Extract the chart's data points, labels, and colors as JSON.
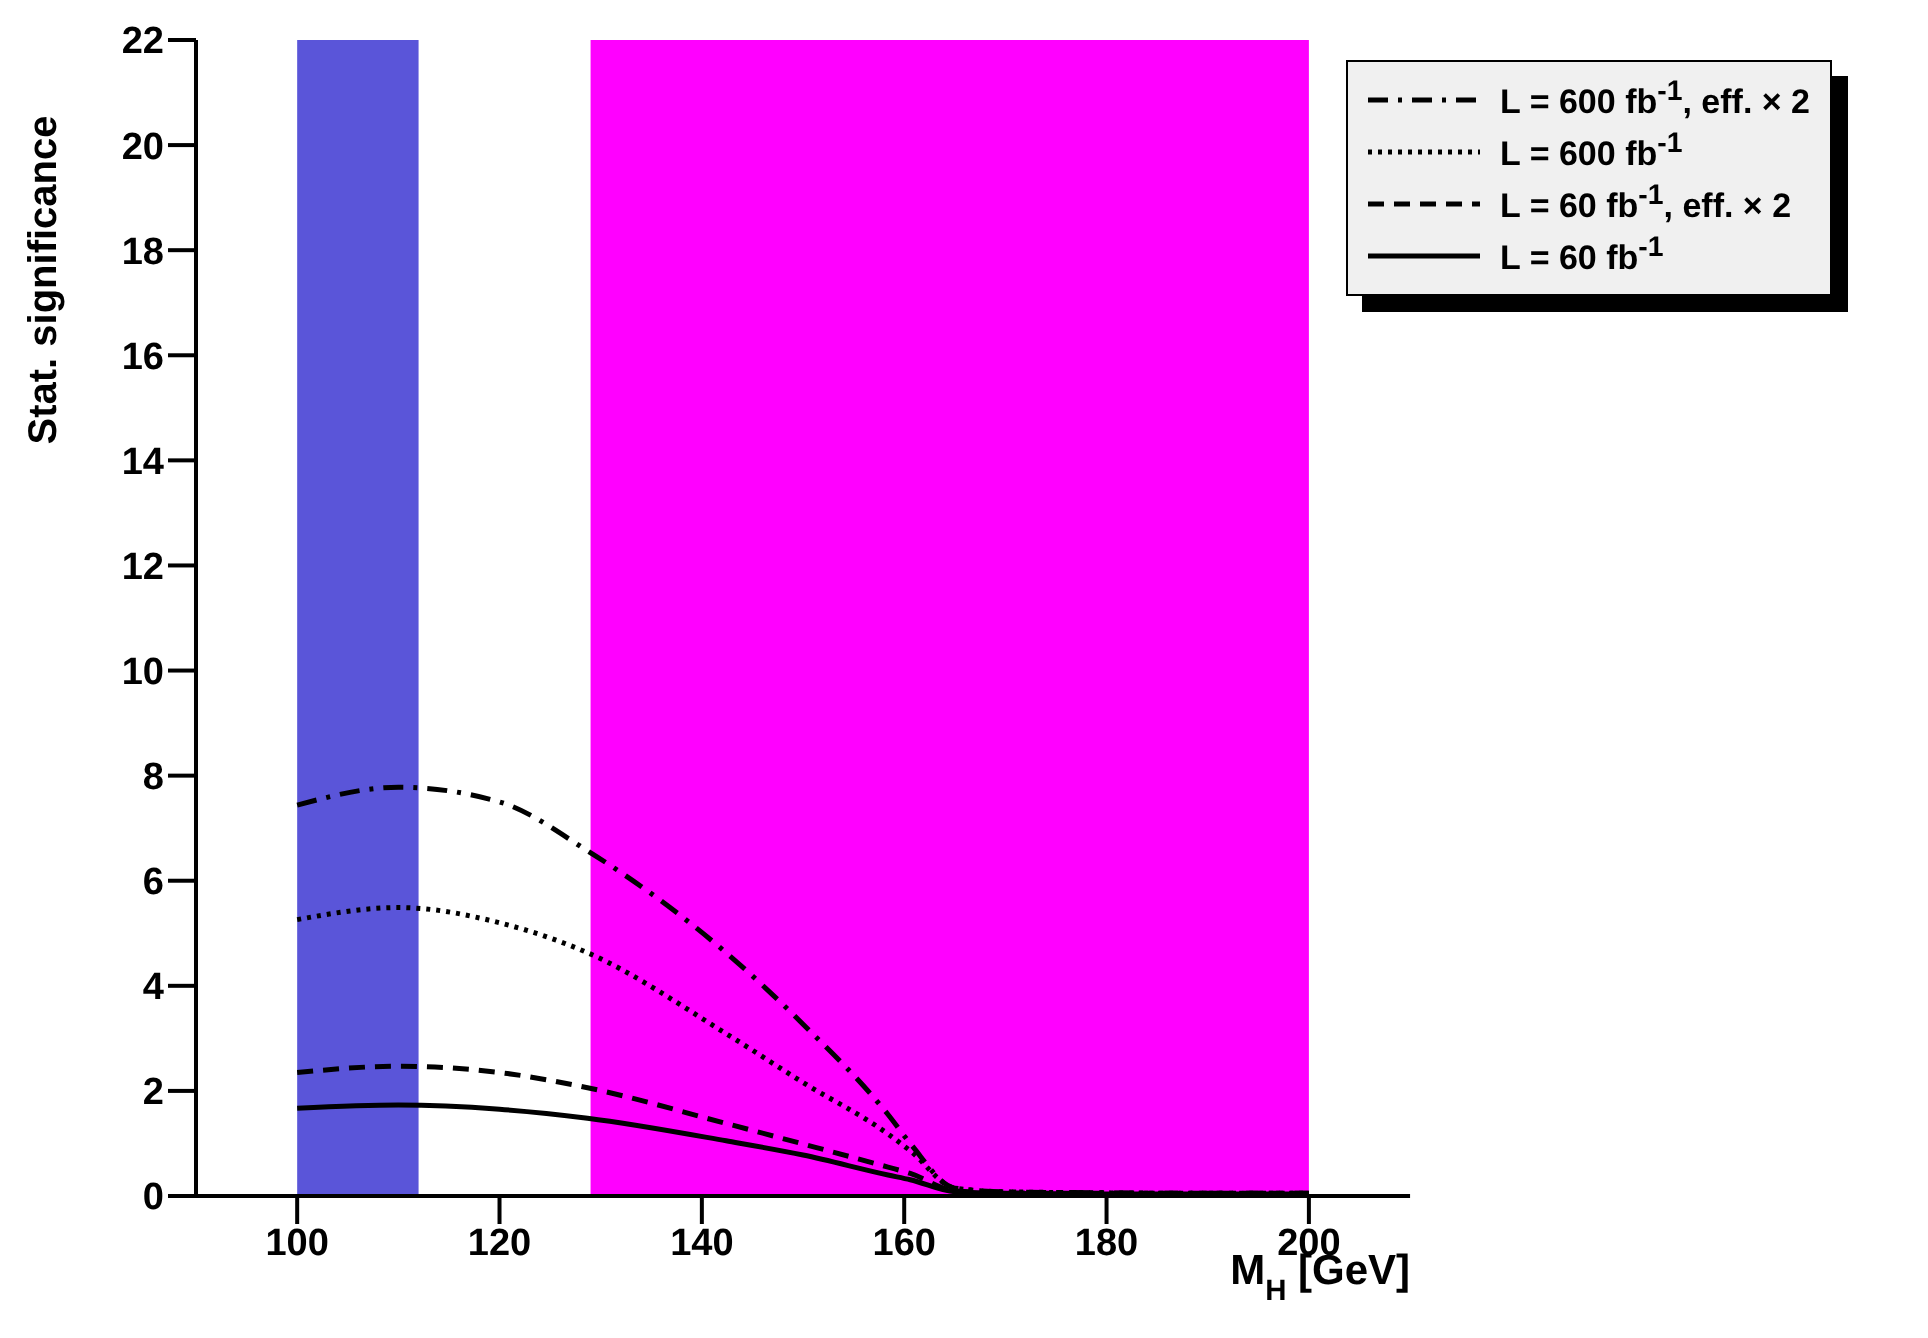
{
  "chart_data": {
    "type": "line",
    "xlabel": "M$_{H}$ [GeV]",
    "ylabel": "Stat. significance",
    "x": [
      100,
      110,
      120,
      128.7,
      142.4,
      150,
      158.4,
      160.6,
      165,
      170,
      180,
      190,
      200
    ],
    "series": [
      {
        "name": "L = 600 fb$^{-1}$, eff. × 2",
        "color": "#000000",
        "line_style": "dashdot",
        "values": [
          7.44,
          7.78,
          7.5,
          6.57,
          4.63,
          3.27,
          1.55,
          1.0,
          0.15,
          0.08,
          0.06,
          0.05,
          0.05
        ]
      },
      {
        "name": "L = 600 fb$^{-1}$",
        "color": "#000000",
        "line_style": "dotted",
        "values": [
          5.26,
          5.49,
          5.2,
          4.63,
          3.09,
          2.16,
          1.18,
          0.86,
          0.15,
          0.08,
          0.06,
          0.05,
          0.05
        ]
      },
      {
        "name": "L = 60 fb$^{-1}$, eff. × 2",
        "color": "#000000",
        "line_style": "dashed",
        "values": [
          2.35,
          2.47,
          2.35,
          2.06,
          1.38,
          0.99,
          0.55,
          0.43,
          0.1,
          0.06,
          0.05,
          0.05,
          0.05
        ]
      },
      {
        "name": "L = 60 fb$^{-1}$",
        "color": "#000000",
        "line_style": "solid",
        "values": [
          1.67,
          1.73,
          1.65,
          1.48,
          1.05,
          0.78,
          0.4,
          0.31,
          0.08,
          0.05,
          0.04,
          0.04,
          0.04
        ]
      }
    ],
    "xlim": [
      90,
      210
    ],
    "xticks": [
      100,
      120,
      140,
      160,
      180,
      200
    ],
    "ylim": [
      0,
      22
    ],
    "yticks": [
      0,
      2,
      4,
      6,
      8,
      10,
      12,
      14,
      16,
      18,
      20,
      22
    ],
    "bands": [
      {
        "axis": "x",
        "from": 100,
        "to": 112,
        "color": "#5a55d9"
      },
      {
        "axis": "x",
        "from": 129,
        "to": 200,
        "color": "#ff00ff"
      }
    ],
    "grid": false,
    "legend": "top right",
    "marker": "none"
  }
}
